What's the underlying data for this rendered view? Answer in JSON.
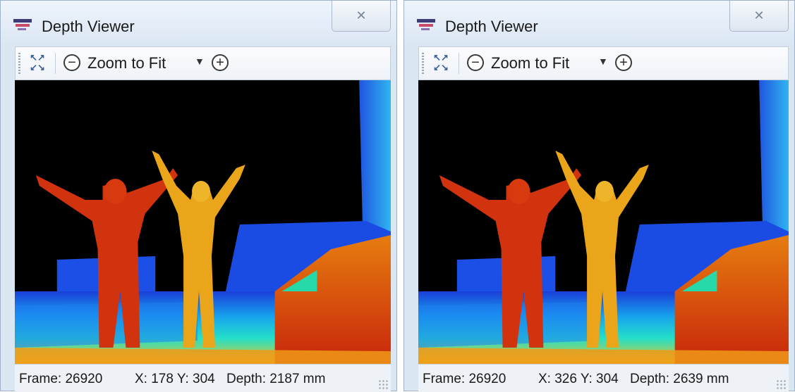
{
  "windows": [
    {
      "title": "Depth Viewer",
      "close_glyph": "✕",
      "toolbar": {
        "fit_icon": "fit-to-window-icon",
        "zoom_out_glyph": "−",
        "zoom_label": "Zoom to Fit",
        "zoom_dropdown_glyph": "▼",
        "zoom_in_glyph": "+"
      },
      "status": {
        "frame": "Frame: 26920",
        "xy": "X: 178 Y: 304",
        "depth": "Depth: 2187 mm"
      }
    },
    {
      "title": "Depth Viewer",
      "close_glyph": "✕",
      "toolbar": {
        "fit_icon": "fit-to-window-icon",
        "zoom_out_glyph": "−",
        "zoom_label": "Zoom to Fit",
        "zoom_dropdown_glyph": "▼",
        "zoom_in_glyph": "+"
      },
      "status": {
        "frame": "Frame: 26920",
        "xy": "X: 326 Y: 304",
        "depth": "Depth: 2639 mm"
      }
    }
  ],
  "colors": {
    "background": "#000000",
    "far": "#1437d6",
    "mid": "#1fd6e6",
    "near_yellow": "#f0b400",
    "near_red": "#d42a10"
  }
}
